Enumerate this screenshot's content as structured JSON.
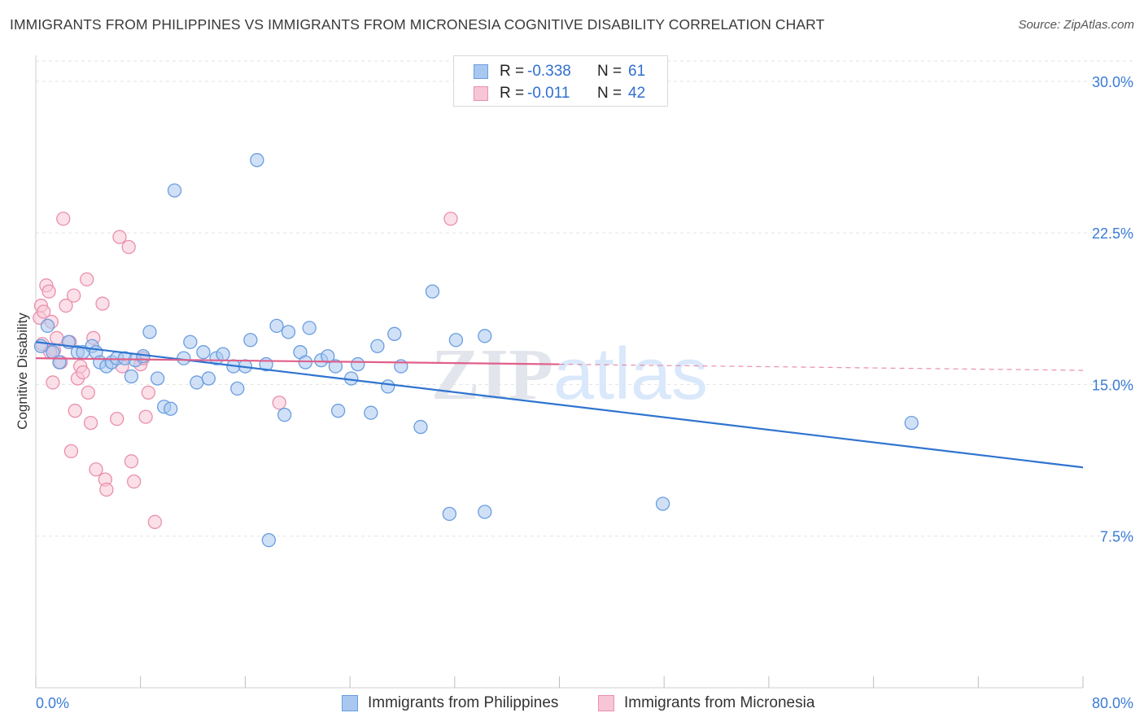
{
  "title": "IMMIGRANTS FROM PHILIPPINES VS IMMIGRANTS FROM MICRONESIA COGNITIVE DISABILITY CORRELATION CHART",
  "source": "Source: ZipAtlas.com",
  "legend": {
    "r_label": "R =",
    "n_label": "N =",
    "rows": [
      {
        "r": "-0.338",
        "n": "61"
      },
      {
        "r": "-0.011",
        "n": "42"
      }
    ]
  },
  "bottom_legend": [
    "Immigrants from Philippines",
    "Immigrants from Micronesia"
  ],
  "colors": {
    "blue_fill": "#a9c8f0",
    "blue_stroke": "#6a9de0",
    "blue_line": "#2f74d0",
    "pink_fill": "#f7c6d6",
    "pink_stroke": "#ea8fad",
    "pink_line": "#e0608a",
    "grid": "#e3e3e3",
    "tick_text": "#3a7bd5"
  },
  "chart_data": {
    "type": "scatter",
    "title": "IMMIGRANTS FROM PHILIPPINES VS IMMIGRANTS FROM MICRONESIA COGNITIVE DISABILITY CORRELATION CHART",
    "xlabel": "",
    "ylabel": "Cognitive Disability",
    "xlim": [
      0,
      80
    ],
    "ylim": [
      0,
      31
    ],
    "x_tick_labels": [
      "0.0%",
      "80.0%"
    ],
    "y_ticks": [
      7.5,
      15.0,
      22.5,
      30.0
    ],
    "y_tick_labels": [
      "7.5%",
      "15.0%",
      "22.5%",
      "30.0%"
    ],
    "grid": true,
    "watermark": "ZIPatlas",
    "series": [
      {
        "name": "Immigrants from Philippines",
        "color": "#a9c8f0",
        "trend": {
          "x": [
            0,
            80
          ],
          "y": [
            17.1,
            10.9
          ],
          "style": "solid"
        },
        "points": [
          [
            0.4,
            16.9
          ],
          [
            0.9,
            17.9
          ],
          [
            1.3,
            16.6
          ],
          [
            1.8,
            16.1
          ],
          [
            2.5,
            17.1
          ],
          [
            3.2,
            16.6
          ],
          [
            3.6,
            16.6
          ],
          [
            4.3,
            16.9
          ],
          [
            4.6,
            16.6
          ],
          [
            4.9,
            16.1
          ],
          [
            5.4,
            15.9
          ],
          [
            5.8,
            16.1
          ],
          [
            6.2,
            16.3
          ],
          [
            6.8,
            16.3
          ],
          [
            7.3,
            15.4
          ],
          [
            7.6,
            16.2
          ],
          [
            8.2,
            16.4
          ],
          [
            8.7,
            17.6
          ],
          [
            9.3,
            15.3
          ],
          [
            9.8,
            13.9
          ],
          [
            10.3,
            13.8
          ],
          [
            10.6,
            24.6
          ],
          [
            11.3,
            16.3
          ],
          [
            11.8,
            17.1
          ],
          [
            12.3,
            15.1
          ],
          [
            12.8,
            16.6
          ],
          [
            13.2,
            15.3
          ],
          [
            13.8,
            16.3
          ],
          [
            14.3,
            16.5
          ],
          [
            15.1,
            15.9
          ],
          [
            15.4,
            14.8
          ],
          [
            16.0,
            15.9
          ],
          [
            16.4,
            17.2
          ],
          [
            16.9,
            26.1
          ],
          [
            17.6,
            16.0
          ],
          [
            17.8,
            7.3
          ],
          [
            18.4,
            17.9
          ],
          [
            19.0,
            13.5
          ],
          [
            19.3,
            17.6
          ],
          [
            20.2,
            16.6
          ],
          [
            20.6,
            16.1
          ],
          [
            20.9,
            17.8
          ],
          [
            21.8,
            16.2
          ],
          [
            22.3,
            16.4
          ],
          [
            22.9,
            15.9
          ],
          [
            23.1,
            13.7
          ],
          [
            24.1,
            15.3
          ],
          [
            24.6,
            16.0
          ],
          [
            25.6,
            13.6
          ],
          [
            26.1,
            16.9
          ],
          [
            26.9,
            14.9
          ],
          [
            27.4,
            17.5
          ],
          [
            27.9,
            15.9
          ],
          [
            29.4,
            12.9
          ],
          [
            30.3,
            19.6
          ],
          [
            31.6,
            8.6
          ],
          [
            32.1,
            17.2
          ],
          [
            34.3,
            17.4
          ],
          [
            34.3,
            8.7
          ],
          [
            47.9,
            9.1
          ],
          [
            66.9,
            13.1
          ]
        ]
      },
      {
        "name": "Immigrants from Micronesia",
        "color": "#f7c6d6",
        "trend": {
          "x": [
            0,
            40,
            80
          ],
          "y": [
            16.3,
            16.0,
            15.7
          ],
          "solid_until": 40
        },
        "points": [
          [
            0.3,
            18.3
          ],
          [
            0.4,
            18.9
          ],
          [
            0.6,
            18.6
          ],
          [
            0.8,
            19.9
          ],
          [
            1.0,
            19.6
          ],
          [
            1.2,
            18.1
          ],
          [
            1.3,
            15.1
          ],
          [
            1.4,
            16.7
          ],
          [
            1.6,
            17.3
          ],
          [
            1.9,
            16.1
          ],
          [
            2.1,
            23.2
          ],
          [
            2.3,
            18.9
          ],
          [
            2.6,
            17.1
          ],
          [
            2.7,
            11.7
          ],
          [
            2.9,
            19.4
          ],
          [
            3.0,
            13.7
          ],
          [
            3.2,
            15.3
          ],
          [
            3.4,
            15.9
          ],
          [
            3.6,
            15.6
          ],
          [
            3.9,
            20.2
          ],
          [
            4.0,
            14.6
          ],
          [
            4.2,
            13.1
          ],
          [
            4.4,
            17.3
          ],
          [
            4.6,
            10.8
          ],
          [
            5.1,
            19.0
          ],
          [
            5.3,
            10.3
          ],
          [
            5.4,
            9.8
          ],
          [
            6.2,
            13.3
          ],
          [
            6.4,
            22.3
          ],
          [
            6.6,
            15.9
          ],
          [
            7.1,
            21.8
          ],
          [
            7.3,
            11.2
          ],
          [
            7.5,
            10.2
          ],
          [
            8.0,
            16.0
          ],
          [
            8.2,
            16.3
          ],
          [
            8.4,
            13.4
          ],
          [
            8.6,
            14.6
          ],
          [
            9.1,
            8.2
          ],
          [
            18.6,
            14.1
          ],
          [
            31.7,
            23.2
          ],
          [
            0.5,
            17.0
          ],
          [
            1.1,
            16.6
          ]
        ]
      }
    ]
  }
}
